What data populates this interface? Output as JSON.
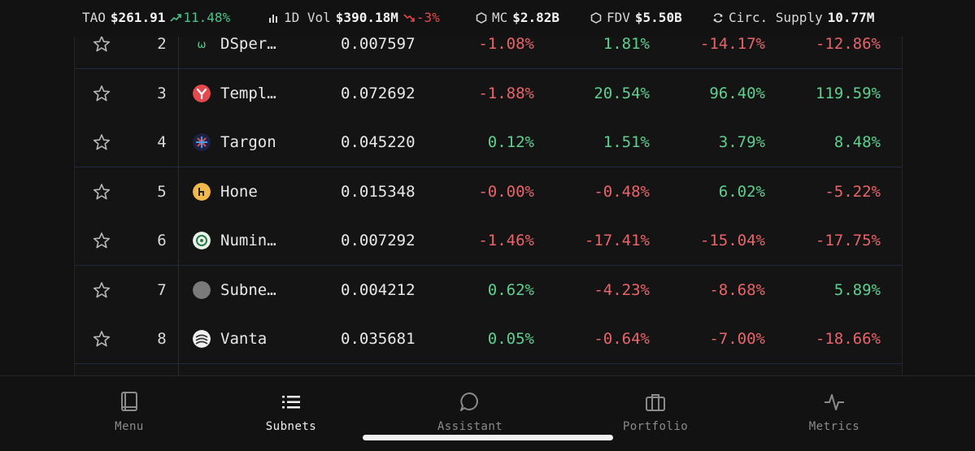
{
  "ticker": {
    "tao_label": "TAO",
    "tao_price": "$261.91",
    "tao_change": "11.48%",
    "vol_label": "1D Vol",
    "vol_value": "$390.18M",
    "vol_change": "-3%",
    "mc_label": "MC",
    "mc_value": "$2.82B",
    "fdv_label": "FDV",
    "fdv_value": "$5.50B",
    "supply_label": "Circ. Supply",
    "supply_value": "10.77M"
  },
  "rows": [
    {
      "rank": "2",
      "name": "DSper…",
      "price": "0.007597",
      "c1": "-1.08%",
      "c2": "1.81%",
      "c3": "-14.17%",
      "c4": "-12.86%",
      "logo": "dsper-logo"
    },
    {
      "rank": "3",
      "name": "Templ…",
      "price": "0.072692",
      "c1": "-1.88%",
      "c2": "20.54%",
      "c3": "96.40%",
      "c4": "119.59%",
      "logo": "templ-logo"
    },
    {
      "rank": "4",
      "name": "Targon",
      "price": "0.045220",
      "c1": "0.12%",
      "c2": "1.51%",
      "c3": "3.79%",
      "c4": "8.48%",
      "logo": "targon-logo"
    },
    {
      "rank": "5",
      "name": "Hone",
      "price": "0.015348",
      "c1": "-0.00%",
      "c2": "-0.48%",
      "c3": "6.02%",
      "c4": "-5.22%",
      "logo": "hone-logo"
    },
    {
      "rank": "6",
      "name": "Numin…",
      "price": "0.007292",
      "c1": "-1.46%",
      "c2": "-17.41%",
      "c3": "-15.04%",
      "c4": "-17.75%",
      "logo": "numin-logo"
    },
    {
      "rank": "7",
      "name": "Subne…",
      "price": "0.004212",
      "c1": "0.62%",
      "c2": "-4.23%",
      "c3": "-8.68%",
      "c4": "5.89%",
      "logo": "subne-logo"
    },
    {
      "rank": "8",
      "name": "Vanta",
      "price": "0.035681",
      "c1": "0.05%",
      "c2": "-0.64%",
      "c3": "-7.00%",
      "c4": "-18.66%",
      "logo": "vanta-logo"
    }
  ],
  "nav": {
    "menu": "Menu",
    "subnets": "Subnets",
    "assistant": "Assistant",
    "portfolio": "Portfolio",
    "metrics": "Metrics"
  },
  "colors": {
    "positive": "#5fcf8f",
    "negative": "#e8646a",
    "background": "#121212"
  }
}
